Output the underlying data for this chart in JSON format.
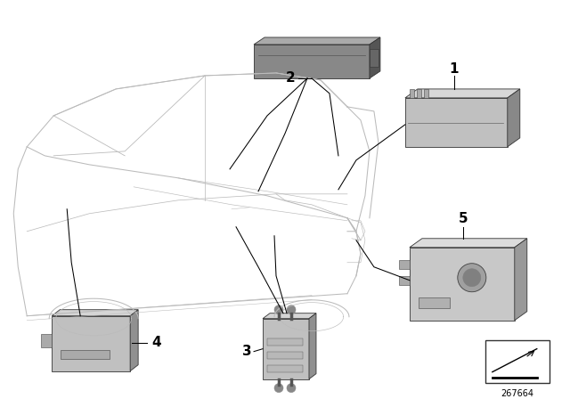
{
  "background_color": "#ffffff",
  "diagram_number": "267664",
  "car_color": "#cccccc",
  "car_lw": 0.7,
  "component_face": "#c8c8c8",
  "component_side": "#909090",
  "component_top": "#e0e0e0",
  "component_dark_face": "#888888",
  "component_dark_side": "#555555",
  "component_dark_top": "#aaaaaa",
  "label_fontsize": 11,
  "number_fontsize": 7,
  "line_color": "#000000",
  "line_lw": 0.75
}
